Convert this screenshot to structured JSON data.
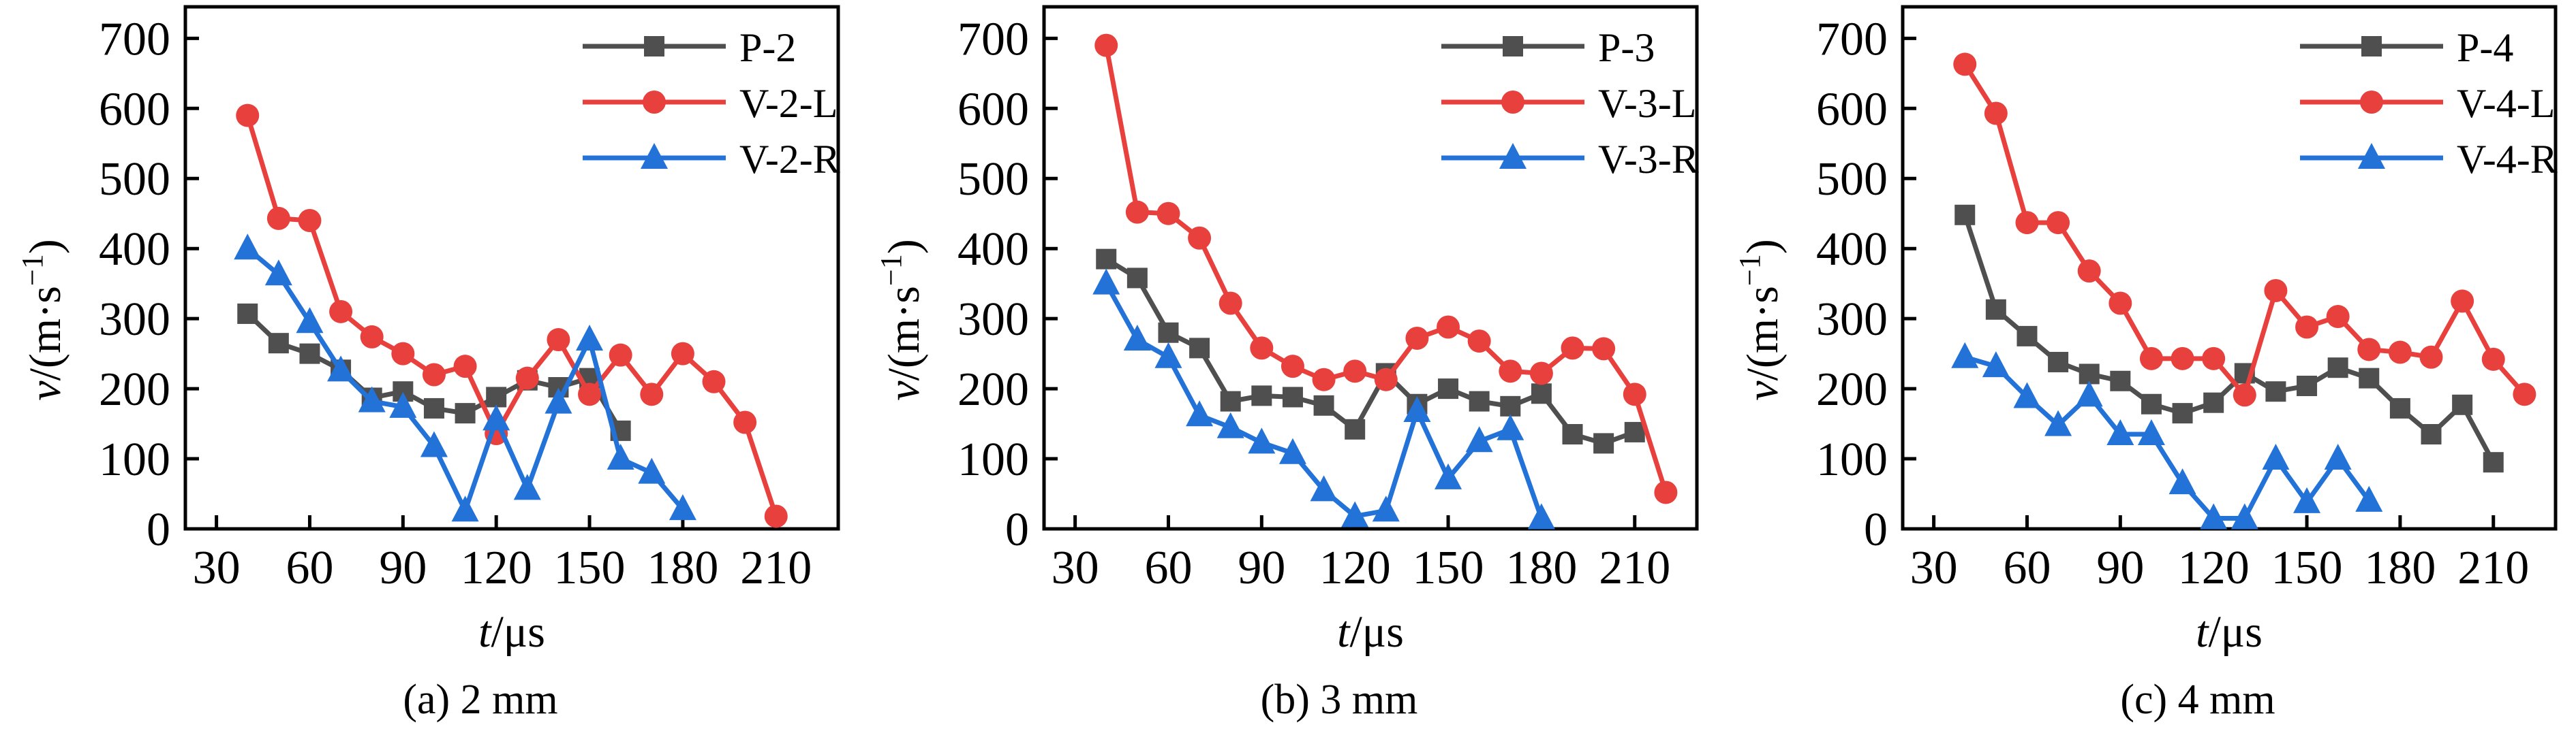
{
  "figure": {
    "background": "#ffffff",
    "axis_color": "#000000",
    "description": "Velocity-time history curves for three plate thicknesses"
  },
  "chart_data": [
    {
      "type": "line",
      "caption": "(a) 2 mm",
      "legend_position": "top-right",
      "x_axis": {
        "label_italic": "t",
        "label_rest": "/μs",
        "range": [
          20,
          230
        ],
        "ticks": [
          30,
          60,
          90,
          120,
          150,
          180,
          210
        ]
      },
      "y_axis": {
        "label_italic": "v",
        "label_rest": "/(m·s",
        "label_sup": "−1",
        "label_close": ")",
        "range": [
          0,
          745
        ],
        "ticks": [
          0,
          100,
          200,
          300,
          400,
          500,
          600,
          700
        ]
      },
      "series": [
        {
          "name": "P-2",
          "color": "#4F4F4F",
          "marker": "square",
          "t": [
            40,
            50,
            60,
            70,
            80,
            90,
            100,
            110,
            120,
            130,
            140,
            150,
            160
          ],
          "v": [
            307,
            265,
            250,
            227,
            187,
            196,
            172,
            165,
            188,
            212,
            202,
            215,
            140
          ]
        },
        {
          "name": "V-2-L",
          "color": "#E8403C",
          "marker": "circle",
          "t": [
            40,
            50,
            60,
            70,
            80,
            90,
            100,
            110,
            120,
            130,
            140,
            150,
            160,
            170,
            180,
            190,
            200,
            210
          ],
          "v": [
            590,
            443,
            440,
            310,
            274,
            250,
            220,
            232,
            136,
            215,
            270,
            192,
            248,
            192,
            250,
            210,
            152,
            18
          ]
        },
        {
          "name": "V-2-R",
          "color": "#2272D8",
          "marker": "triangle",
          "t": [
            40,
            50,
            60,
            70,
            80,
            90,
            100,
            110,
            120,
            130,
            140,
            150,
            160,
            170,
            180
          ],
          "v": [
            400,
            363,
            295,
            226,
            182,
            174,
            118,
            26,
            156,
            57,
            180,
            270,
            100,
            80,
            28
          ]
        }
      ]
    },
    {
      "type": "line",
      "caption": "(b) 3 mm",
      "legend_position": "top-right",
      "x_axis": {
        "label_italic": "t",
        "label_rest": "/μs",
        "range": [
          20,
          230
        ],
        "ticks": [
          30,
          60,
          90,
          120,
          150,
          180,
          210
        ]
      },
      "y_axis": {
        "label_italic": "v",
        "label_rest": "/(m·s",
        "label_sup": "−1",
        "label_close": ")",
        "range": [
          0,
          745
        ],
        "ticks": [
          0,
          100,
          200,
          300,
          400,
          500,
          600,
          700
        ]
      },
      "series": [
        {
          "name": "P-3",
          "color": "#4F4F4F",
          "marker": "square",
          "t": [
            40,
            50,
            60,
            70,
            80,
            90,
            100,
            110,
            120,
            130,
            140,
            150,
            160,
            170,
            180,
            190,
            200,
            210
          ],
          "v": [
            385,
            358,
            280,
            258,
            182,
            190,
            188,
            176,
            142,
            222,
            178,
            200,
            182,
            175,
            193,
            135,
            122,
            138
          ]
        },
        {
          "name": "V-3-L",
          "color": "#E8403C",
          "marker": "circle",
          "t": [
            40,
            50,
            60,
            70,
            80,
            90,
            100,
            110,
            120,
            130,
            140,
            150,
            160,
            170,
            180,
            190,
            200,
            210,
            220
          ],
          "v": [
            690,
            452,
            450,
            415,
            322,
            258,
            232,
            213,
            225,
            213,
            272,
            288,
            268,
            225,
            222,
            258,
            257,
            192,
            52
          ]
        },
        {
          "name": "V-3-R",
          "color": "#2272D8",
          "marker": "triangle",
          "t": [
            40,
            50,
            60,
            70,
            80,
            90,
            100,
            110,
            120,
            130,
            140,
            150,
            160,
            170,
            180
          ],
          "v": [
            350,
            270,
            245,
            162,
            145,
            123,
            108,
            55,
            18,
            26,
            168,
            72,
            125,
            142,
            15
          ]
        }
      ]
    },
    {
      "type": "line",
      "caption": "(c) 4 mm",
      "legend_position": "top-right",
      "x_axis": {
        "label_italic": "t",
        "label_rest": "/μs",
        "range": [
          20,
          230
        ],
        "ticks": [
          30,
          60,
          90,
          120,
          150,
          180,
          210
        ]
      },
      "y_axis": {
        "label_italic": "v",
        "label_rest": "/(m·s",
        "label_sup": "−1",
        "label_close": ")",
        "range": [
          0,
          745
        ],
        "ticks": [
          0,
          100,
          200,
          300,
          400,
          500,
          600,
          700
        ]
      },
      "series": [
        {
          "name": "P-4",
          "color": "#4F4F4F",
          "marker": "square",
          "t": [
            40,
            50,
            60,
            70,
            80,
            90,
            100,
            110,
            120,
            130,
            140,
            150,
            160,
            170,
            180,
            190,
            200,
            210
          ],
          "v": [
            448,
            313,
            275,
            238,
            221,
            211,
            178,
            165,
            180,
            222,
            196,
            204,
            230,
            215,
            172,
            135,
            177,
            95
          ]
        },
        {
          "name": "V-4-L",
          "color": "#E8403C",
          "marker": "circle",
          "t": [
            40,
            50,
            60,
            70,
            80,
            90,
            100,
            110,
            120,
            130,
            140,
            150,
            160,
            170,
            180,
            190,
            200,
            210,
            220
          ],
          "v": [
            663,
            593,
            437,
            437,
            368,
            322,
            243,
            243,
            243,
            191,
            340,
            288,
            303,
            256,
            252,
            245,
            325,
            242,
            192
          ]
        },
        {
          "name": "V-4-R",
          "color": "#2272D8",
          "marker": "triangle",
          "t": [
            40,
            50,
            60,
            70,
            80,
            90,
            100,
            110,
            120,
            130,
            140,
            150,
            160,
            170
          ],
          "v": [
            245,
            232,
            188,
            148,
            190,
            135,
            135,
            65,
            15,
            15,
            100,
            38,
            100,
            40
          ]
        }
      ]
    }
  ]
}
